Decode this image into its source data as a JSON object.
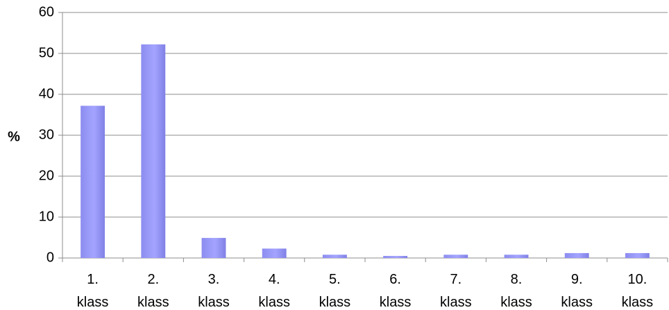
{
  "chart_data": {
    "type": "bar",
    "ylabel": "%",
    "categories": [
      "1. klass",
      "2. klass",
      "3. klass",
      "4. klass",
      "5. klass",
      "6. klass",
      "7. klass",
      "8. klass",
      "9. klass",
      "10. klass"
    ],
    "values": [
      37.2,
      52.2,
      4.9,
      2.3,
      0.8,
      0.5,
      0.8,
      0.8,
      1.2,
      1.2
    ],
    "color": "#9999ff",
    "ylim": [
      0,
      60
    ],
    "yticks": [
      0,
      10,
      20,
      30,
      40,
      50,
      60
    ],
    "grid": true
  }
}
